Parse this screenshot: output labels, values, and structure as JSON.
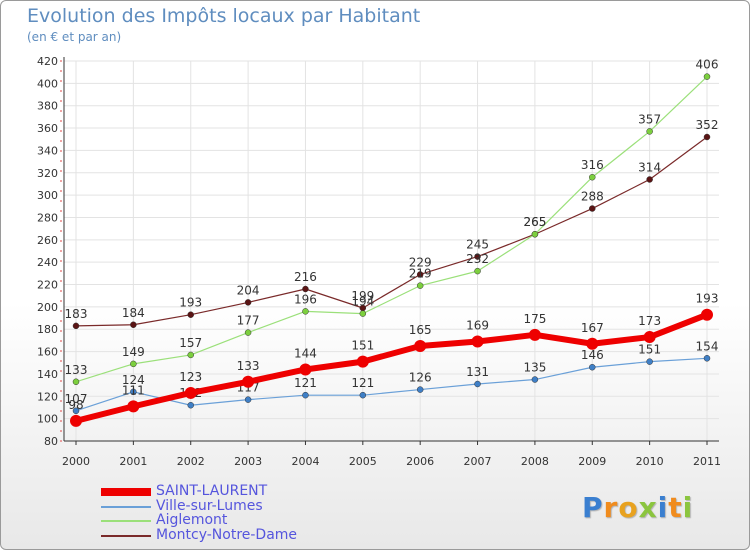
{
  "title": "Evolution des Impôts locaux par Habitant",
  "subtitle": "(en € et par an)",
  "brand": {
    "letters": [
      "P",
      "r",
      "o",
      "x",
      "i",
      "t",
      "i"
    ],
    "colors": [
      "#3a7fd0",
      "#f08c1e",
      "#e8a21f",
      "#8bc53f",
      "#3a7fd0",
      "#f08c1e",
      "#8bc53f"
    ]
  },
  "chart_data": {
    "type": "line",
    "x": [
      "2000",
      "2001",
      "2002",
      "2003",
      "2004",
      "2005",
      "2006",
      "2007",
      "2008",
      "2009",
      "2010",
      "2011"
    ],
    "ylim": [
      80,
      420
    ],
    "yticks": [
      80,
      100,
      120,
      140,
      160,
      180,
      200,
      220,
      240,
      260,
      280,
      300,
      320,
      340,
      360,
      380,
      400,
      420
    ],
    "grid": true,
    "legend_position": "bottom-left",
    "series": [
      {
        "name": "Montcy-Notre-Dame",
        "color": "#7a2a2a",
        "marker": "#5a1414",
        "width": 1.2,
        "r": 3,
        "values": [
          183,
          184,
          193,
          204,
          216,
          199,
          229,
          245,
          265,
          288,
          314,
          352
        ],
        "labels": [
          "183",
          "184",
          "193",
          "204",
          "216",
          "199",
          "229",
          "245",
          "265",
          "288",
          "314",
          "352"
        ],
        "label_pos": "above"
      },
      {
        "name": "Aiglemont",
        "color": "#9be07a",
        "marker": "#7ccf3e",
        "width": 1.2,
        "r": 3,
        "values": [
          133,
          149,
          157,
          177,
          196,
          194,
          219,
          232,
          265,
          316,
          357,
          406
        ],
        "labels": [
          "133",
          "149",
          "157",
          "177",
          "196",
          "194",
          "219",
          "232",
          "265",
          "316",
          "357",
          "406"
        ],
        "label_pos": "above"
      },
      {
        "name": "Ville-sur-Lumes",
        "color": "#6aa0d8",
        "marker": "#3f7fc6",
        "width": 1.2,
        "r": 3,
        "values": [
          107,
          124,
          112,
          117,
          121,
          121,
          126,
          131,
          135,
          146,
          151,
          154
        ],
        "labels": [
          "107",
          "124",
          "112",
          "117",
          "121",
          "121",
          "126",
          "131",
          "135",
          "146",
          "151",
          "154"
        ],
        "label_pos": "above"
      },
      {
        "name": "SAINT-LAURENT",
        "color": "#ee0000",
        "marker": "#ee0000",
        "width": 6,
        "r": 6,
        "values": [
          98,
          111,
          123,
          133,
          144,
          151,
          165,
          169,
          175,
          167,
          173,
          193
        ],
        "labels": [
          "98",
          "111",
          "123",
          "133",
          "144",
          "151",
          "165",
          "169",
          "175",
          "167",
          "173",
          "193"
        ],
        "label_pos": "above"
      }
    ],
    "legend": [
      {
        "name": "SAINT-LAURENT",
        "color": "#ee0000",
        "thickness": 8
      },
      {
        "name": "Ville-sur-Lumes",
        "color": "#6aa0d8",
        "thickness": 2
      },
      {
        "name": "Aiglemont",
        "color": "#9be07a",
        "thickness": 2
      },
      {
        "name": "Montcy-Notre-Dame",
        "color": "#7a2a2a",
        "thickness": 2
      }
    ]
  }
}
